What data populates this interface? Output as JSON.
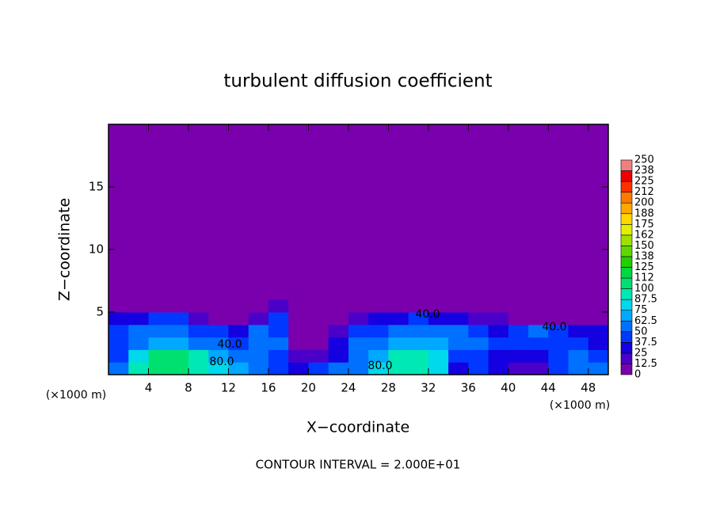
{
  "chart_data": {
    "type": "contour",
    "title": "turbulent diffusion coefficient",
    "x_label": "X−coordinate",
    "y_label": "Z−coordinate",
    "x_unit": "(×1000 m)",
    "y_unit": "(×1000 m)",
    "footer": "CONTOUR INTERVAL = 2.000E+01",
    "xlim": [
      0,
      50
    ],
    "ylim": [
      0,
      20
    ],
    "xticks": [
      4,
      8,
      12,
      16,
      20,
      24,
      28,
      32,
      36,
      40,
      44,
      48
    ],
    "yticks": [
      5,
      10,
      15
    ],
    "x": [
      1,
      3,
      5,
      7,
      9,
      11,
      13,
      15,
      17,
      19,
      21,
      23,
      25,
      27,
      29,
      31,
      33,
      35,
      37,
      39,
      41,
      43,
      45,
      47,
      49
    ],
    "y": [
      0.5,
      1.5,
      2.5,
      3.5,
      4.5,
      5.5
    ],
    "z": [
      [
        50,
        90,
        100,
        100,
        90,
        80,
        70,
        60,
        40,
        30,
        40,
        50,
        60,
        80,
        90,
        90,
        80,
        30,
        40,
        30,
        20,
        20,
        40,
        60,
        50
      ],
      [
        40,
        80,
        100,
        110,
        90,
        70,
        60,
        50,
        40,
        20,
        20,
        30,
        50,
        70,
        90,
        90,
        80,
        40,
        40,
        30,
        30,
        30,
        40,
        60,
        40
      ],
      [
        40,
        60,
        70,
        70,
        60,
        50,
        40,
        60,
        50,
        10,
        5,
        30,
        50,
        60,
        70,
        70,
        70,
        50,
        50,
        40,
        40,
        40,
        40,
        40,
        30
      ],
      [
        40,
        50,
        50,
        50,
        40,
        40,
        30,
        50,
        40,
        5,
        0,
        20,
        40,
        40,
        50,
        50,
        50,
        50,
        40,
        30,
        40,
        50,
        40,
        30,
        30
      ],
      [
        30,
        30,
        40,
        40,
        20,
        0,
        10,
        20,
        40,
        0,
        0,
        0,
        20,
        30,
        30,
        40,
        30,
        30,
        20,
        20,
        10,
        10,
        0,
        0,
        10
      ],
      [
        0,
        0,
        10,
        10,
        0,
        0,
        0,
        0,
        20,
        0,
        0,
        0,
        0,
        0,
        10,
        10,
        0,
        0,
        0,
        0,
        0,
        0,
        0,
        0,
        0
      ]
    ],
    "levels": [
      0,
      12.5,
      25,
      37.5,
      50,
      62.5,
      75,
      87.5,
      100,
      112,
      125,
      138,
      150,
      162,
      175,
      188,
      200,
      212,
      225,
      238,
      250
    ],
    "colors": [
      "#7a00ae",
      "#4a00c8",
      "#1400e0",
      "#0038ff",
      "#0070ff",
      "#00a8ff",
      "#00d8ec",
      "#00e8b4",
      "#00e070",
      "#00d840",
      "#20d000",
      "#60d800",
      "#a0e000",
      "#e0f000",
      "#ffd800",
      "#ffa800",
      "#ff7800",
      "#ff3000",
      "#f00000",
      "#f08080"
    ],
    "contour_labels": [
      "40.0",
      "80.0",
      "40.0",
      "40.0",
      "80.0"
    ]
  }
}
